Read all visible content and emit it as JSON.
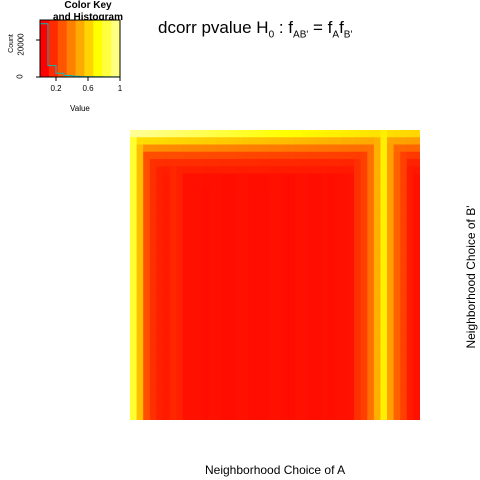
{
  "title": {
    "text1": "dcorr pvalue  H",
    "sub0": "0",
    "text2": "  :  f",
    "subAB": "AB'",
    "text3": "  =  f",
    "subA": "A",
    "text4": "f",
    "subB": "B'"
  },
  "color_key": {
    "title_line1": "Color Key",
    "title_line2": "and Histogram",
    "xlabel": "Value",
    "ylabel": "Count",
    "xticks": [
      "0.2",
      "0.6",
      "1"
    ],
    "yticks": [
      "0",
      "20000"
    ],
    "colors": [
      "#FF0000",
      "#FF2A00",
      "#FF5500",
      "#FF8000",
      "#FFAA00",
      "#FFD400",
      "#FFFF00",
      "#FFFF40",
      "#FFFF80"
    ]
  },
  "chart_data": {
    "type": "heatmap",
    "xlabel": "Neighborhood Choice of A",
    "ylabel": "Neighborhood Choice of B'",
    "value_range": [
      0,
      1
    ],
    "histogram": {
      "bin_edges": [
        0.0,
        0.1,
        0.2,
        0.3,
        0.4,
        0.5,
        0.6,
        0.7,
        0.8,
        0.9,
        1.0
      ],
      "counts": [
        28000,
        6000,
        2000,
        800,
        400,
        200,
        150,
        100,
        80,
        60
      ]
    },
    "column_profile": [
      0.85,
      0.6,
      0.25,
      0.15,
      0.1,
      0.08,
      0.12,
      0.1,
      0.05,
      0.05,
      0.05,
      0.04,
      0.05,
      0.05,
      0.04,
      0.04,
      0.05,
      0.05,
      0.04,
      0.04,
      0.04,
      0.05,
      0.05,
      0.04,
      0.04,
      0.05,
      0.05,
      0.04,
      0.04,
      0.05,
      0.04,
      0.05,
      0.05,
      0.06,
      0.15,
      0.2,
      0.35,
      0.55,
      0.75,
      0.5,
      0.3,
      0.2,
      0.08,
      0.05
    ],
    "top_row_profile": [
      0.95,
      0.7,
      0.45,
      0.25,
      0.15,
      0.1,
      0.05,
      0.05
    ]
  }
}
